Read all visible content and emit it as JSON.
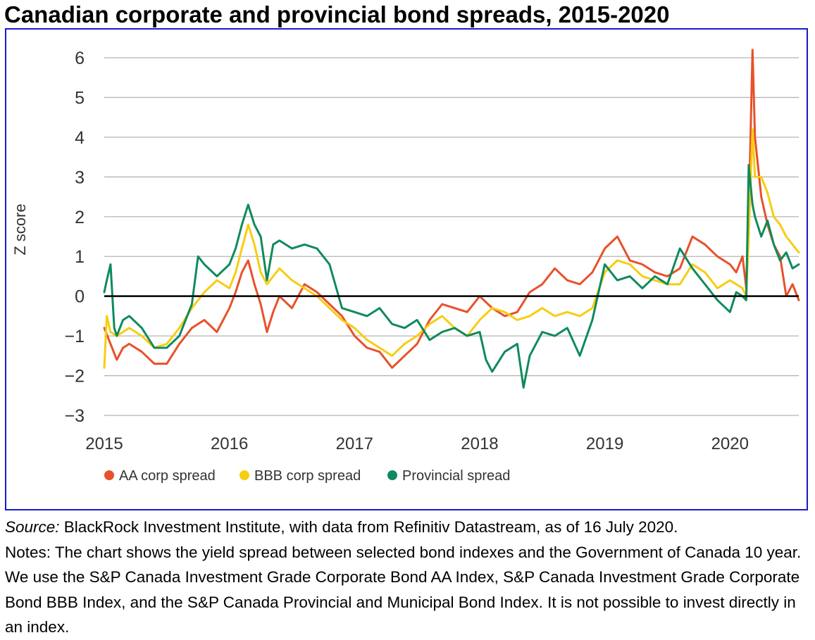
{
  "title": "Canadian corporate and provincial bond spreads, 2015-2020",
  "source_label": "Source:",
  "source_text": " BlackRock Investment Institute, with data from Refinitiv Datastream, as of 16 July 2020.",
  "notes_text": "Notes: The chart shows the yield spread between selected bond indexes and the Government of Canada 10 year. We use the S&P Canada Investment Grade Corporate Bond AA Index, S&P Canada Investment Grade Corporate Bond BBB Index, and the S&P Canada Provincial and Municipal Bond Index. It is not possible to invest directly in an index.",
  "colors": {
    "frame": "#1a1ac8",
    "aa": "#e8512b",
    "bbb": "#f7cd12",
    "prov": "#0f8a5c",
    "grid": "#b4b4b4",
    "zero": "#000000"
  },
  "chart_data": {
    "type": "line",
    "ylabel": "Z score",
    "ylim": [
      -3,
      6
    ],
    "xlim": [
      2015.0,
      2020.55
    ],
    "yticks": [
      6,
      5,
      4,
      3,
      2,
      1,
      0,
      -1,
      -2,
      -3
    ],
    "xticks": [
      "2015",
      "2016",
      "2017",
      "2018",
      "2019",
      "2020"
    ],
    "grid": true,
    "zero_line": true,
    "legend_position": "bottom-left",
    "series": [
      {
        "name": "AA corp spread",
        "color": "#e8512b",
        "x": [
          2015.0,
          2015.05,
          2015.1,
          2015.15,
          2015.2,
          2015.3,
          2015.4,
          2015.5,
          2015.6,
          2015.7,
          2015.8,
          2015.9,
          2016.0,
          2016.05,
          2016.1,
          2016.15,
          2016.2,
          2016.25,
          2016.3,
          2016.35,
          2016.4,
          2016.5,
          2016.6,
          2016.7,
          2016.8,
          2016.9,
          2017.0,
          2017.1,
          2017.2,
          2017.3,
          2017.4,
          2017.5,
          2017.6,
          2017.7,
          2017.8,
          2017.9,
          2018.0,
          2018.1,
          2018.2,
          2018.3,
          2018.4,
          2018.5,
          2018.6,
          2018.7,
          2018.8,
          2018.9,
          2019.0,
          2019.1,
          2019.2,
          2019.3,
          2019.4,
          2019.5,
          2019.6,
          2019.7,
          2019.8,
          2019.9,
          2020.0,
          2020.05,
          2020.1,
          2020.13,
          2020.15,
          2020.18,
          2020.2,
          2020.25,
          2020.3,
          2020.35,
          2020.4,
          2020.45,
          2020.5,
          2020.55
        ],
        "y": [
          -0.8,
          -1.2,
          -1.6,
          -1.3,
          -1.2,
          -1.4,
          -1.7,
          -1.7,
          -1.2,
          -0.8,
          -0.6,
          -0.9,
          -0.3,
          0.1,
          0.6,
          0.9,
          0.3,
          -0.2,
          -0.9,
          -0.4,
          0.0,
          -0.3,
          0.3,
          0.1,
          -0.2,
          -0.5,
          -1.0,
          -1.3,
          -1.4,
          -1.8,
          -1.5,
          -1.2,
          -0.6,
          -0.2,
          -0.3,
          -0.4,
          0.0,
          -0.3,
          -0.5,
          -0.4,
          0.1,
          0.3,
          0.7,
          0.4,
          0.3,
          0.6,
          1.2,
          1.5,
          0.9,
          0.8,
          0.6,
          0.5,
          0.7,
          1.5,
          1.3,
          1.0,
          0.8,
          0.6,
          1.0,
          0.2,
          2.0,
          6.2,
          4.0,
          2.5,
          1.8,
          1.3,
          1.0,
          0.0,
          0.3,
          -0.1
        ]
      },
      {
        "name": "BBB corp spread",
        "color": "#f7cd12",
        "x": [
          2015.0,
          2015.02,
          2015.05,
          2015.1,
          2015.15,
          2015.2,
          2015.3,
          2015.4,
          2015.5,
          2015.6,
          2015.7,
          2015.8,
          2015.9,
          2016.0,
          2016.05,
          2016.1,
          2016.15,
          2016.2,
          2016.25,
          2016.3,
          2016.35,
          2016.4,
          2016.5,
          2016.6,
          2016.7,
          2016.8,
          2016.9,
          2017.0,
          2017.1,
          2017.2,
          2017.3,
          2017.4,
          2017.5,
          2017.6,
          2017.7,
          2017.8,
          2017.9,
          2018.0,
          2018.1,
          2018.2,
          2018.3,
          2018.4,
          2018.5,
          2018.6,
          2018.7,
          2018.8,
          2018.9,
          2019.0,
          2019.1,
          2019.2,
          2019.3,
          2019.4,
          2019.5,
          2019.6,
          2019.7,
          2019.8,
          2019.9,
          2020.0,
          2020.05,
          2020.1,
          2020.13,
          2020.15,
          2020.18,
          2020.2,
          2020.25,
          2020.3,
          2020.35,
          2020.4,
          2020.45,
          2020.5,
          2020.55
        ],
        "y": [
          -1.8,
          -0.5,
          -0.9,
          -1.0,
          -0.9,
          -0.8,
          -1.0,
          -1.3,
          -1.2,
          -0.8,
          -0.3,
          0.1,
          0.4,
          0.2,
          0.6,
          1.2,
          1.8,
          1.3,
          0.6,
          0.3,
          0.5,
          0.7,
          0.4,
          0.2,
          0.0,
          -0.3,
          -0.6,
          -0.8,
          -1.1,
          -1.3,
          -1.5,
          -1.2,
          -1.0,
          -0.7,
          -0.5,
          -0.8,
          -1.0,
          -0.6,
          -0.3,
          -0.4,
          -0.6,
          -0.5,
          -0.3,
          -0.5,
          -0.4,
          -0.5,
          -0.3,
          0.6,
          0.9,
          0.8,
          0.5,
          0.4,
          0.3,
          0.3,
          0.8,
          0.6,
          0.2,
          0.4,
          0.3,
          0.2,
          0.0,
          1.5,
          4.2,
          3.0,
          3.0,
          2.6,
          2.0,
          1.8,
          1.5,
          1.3,
          1.1
        ]
      },
      {
        "name": "Provincial spread",
        "color": "#0f8a5c",
        "x": [
          2015.0,
          2015.02,
          2015.05,
          2015.08,
          2015.1,
          2015.15,
          2015.2,
          2015.3,
          2015.4,
          2015.5,
          2015.6,
          2015.7,
          2015.75,
          2015.8,
          2015.9,
          2016.0,
          2016.05,
          2016.1,
          2016.15,
          2016.2,
          2016.25,
          2016.3,
          2016.35,
          2016.4,
          2016.5,
          2016.6,
          2016.7,
          2016.8,
          2016.9,
          2017.0,
          2017.1,
          2017.2,
          2017.3,
          2017.4,
          2017.5,
          2017.6,
          2017.7,
          2017.8,
          2017.9,
          2018.0,
          2018.05,
          2018.1,
          2018.2,
          2018.3,
          2018.35,
          2018.4,
          2018.5,
          2018.6,
          2018.7,
          2018.8,
          2018.9,
          2019.0,
          2019.1,
          2019.2,
          2019.3,
          2019.4,
          2019.5,
          2019.6,
          2019.7,
          2019.8,
          2019.9,
          2020.0,
          2020.05,
          2020.1,
          2020.13,
          2020.15,
          2020.18,
          2020.2,
          2020.25,
          2020.3,
          2020.35,
          2020.4,
          2020.45,
          2020.5,
          2020.55
        ],
        "y": [
          0.1,
          0.4,
          0.8,
          -0.8,
          -1.0,
          -0.6,
          -0.5,
          -0.8,
          -1.3,
          -1.3,
          -1.0,
          -0.2,
          1.0,
          0.8,
          0.5,
          0.8,
          1.2,
          1.8,
          2.3,
          1.8,
          1.5,
          0.4,
          1.3,
          1.4,
          1.2,
          1.3,
          1.2,
          0.8,
          -0.3,
          -0.4,
          -0.5,
          -0.3,
          -0.7,
          -0.8,
          -0.6,
          -1.1,
          -0.9,
          -0.8,
          -1.0,
          -0.9,
          -1.6,
          -1.9,
          -1.4,
          -1.2,
          -2.3,
          -1.5,
          -0.9,
          -1.0,
          -0.8,
          -1.5,
          -0.6,
          0.8,
          0.4,
          0.5,
          0.2,
          0.5,
          0.3,
          1.2,
          0.7,
          0.3,
          -0.1,
          -0.4,
          0.1,
          0.0,
          -0.1,
          3.3,
          2.3,
          2.0,
          1.5,
          1.9,
          1.3,
          0.9,
          1.1,
          0.7,
          0.8
        ]
      }
    ]
  }
}
